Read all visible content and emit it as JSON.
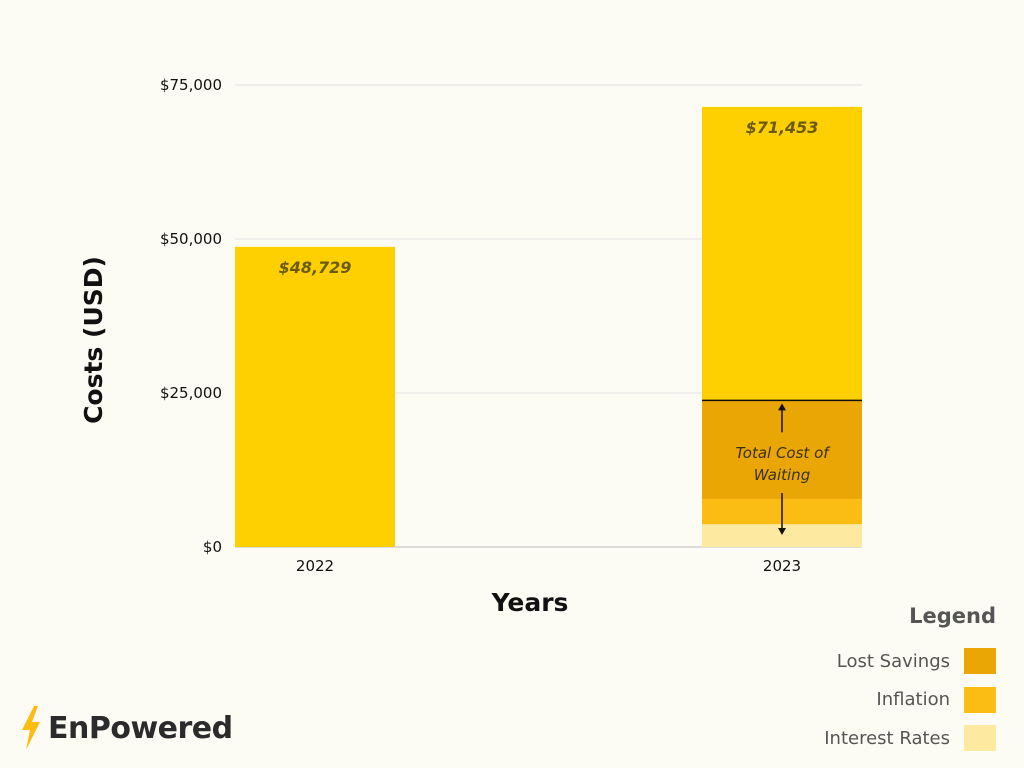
{
  "chart_data": {
    "type": "bar",
    "stacked": true,
    "categories": [
      "2022",
      "2023"
    ],
    "totals": [
      48729,
      71453
    ],
    "total_labels": [
      "$48,729",
      "$71,453"
    ],
    "series": [
      {
        "name": "Interest Rates",
        "color": "#fde9a0",
        "values": [
          0,
          3700
        ]
      },
      {
        "name": "Inflation",
        "color": "#fbbd14",
        "values": [
          0,
          4100
        ]
      },
      {
        "name": "Lost Savings",
        "color": "#e9a605",
        "values": [
          0,
          16000
        ]
      },
      {
        "color": "#fed001",
        "values": [
          48729,
          47653
        ]
      }
    ],
    "annotation": {
      "text": "Total Cost of Waiting",
      "lines": [
        "Total Cost of",
        "Waiting"
      ],
      "category": "2023",
      "range": [
        0,
        23800
      ]
    },
    "xlabel": "Years",
    "ylabel": "Costs (USD)",
    "ylim": [
      0,
      75000
    ],
    "yticks": [
      0,
      25000,
      50000,
      75000
    ],
    "ytick_labels": [
      "$0",
      "$25,000",
      "$50,000",
      "$75,000"
    ],
    "grid": true
  },
  "legend": {
    "title": "Legend",
    "items": [
      {
        "label": "Lost Savings",
        "color": "#e9a605"
      },
      {
        "label": "Inflation",
        "color": "#fbbd14"
      },
      {
        "label": "Interest Rates",
        "color": "#fde9a0"
      }
    ]
  },
  "brand": {
    "name": "EnPowered",
    "icon": "lightning-bolt-icon",
    "accent": "#fbbd14"
  }
}
